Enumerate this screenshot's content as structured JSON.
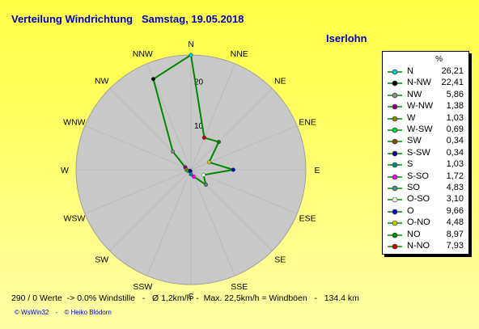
{
  "header": {
    "title": "Verteilung Windrichtung   Samstag, 19.05.2018",
    "location": "Iserlohn"
  },
  "legend": {
    "unit": "%",
    "entries": [
      {
        "label": "N",
        "value": "26,21",
        "color": "#00cccc"
      },
      {
        "label": "N-NW",
        "value": "22,41",
        "color": "#000000"
      },
      {
        "label": "NW",
        "value": "5,86",
        "color": "#888888"
      },
      {
        "label": "W-NW",
        "value": "1,38",
        "color": "#880088"
      },
      {
        "label": "W",
        "value": "1,03",
        "color": "#888800"
      },
      {
        "label": "W-SW",
        "value": "0,69",
        "color": "#00cc44"
      },
      {
        "label": "SW",
        "value": "0,34",
        "color": "#884400"
      },
      {
        "label": "S-SW",
        "value": "0,34",
        "color": "#000088"
      },
      {
        "label": "S",
        "value": "1,03",
        "color": "#008888"
      },
      {
        "label": "S-SO",
        "value": "1,72",
        "color": "#ff00ff"
      },
      {
        "label": "SO",
        "value": "4,83",
        "color": "#448888"
      },
      {
        "label": "O-SO",
        "value": "3,10",
        "color": "#ffffff"
      },
      {
        "label": "O",
        "value": "9,66",
        "color": "#0000cc"
      },
      {
        "label": "O-NO",
        "value": "4,48",
        "color": "#cccc00"
      },
      {
        "label": "NO",
        "value": "8,97",
        "color": "#008800"
      },
      {
        "label": "N-NO",
        "value": "7,93",
        "color": "#cc0000"
      }
    ]
  },
  "footer": {
    "stats": "290 / 0 Werte  -> 0.0% Windstille   -   Ø 1,2km/h  -  Max. 22,5km/h = Windböen   -   134.4 km",
    "credit_left": "© WsWin32",
    "credit_sep": "-",
    "credit_right": "© Heiko Blödorn"
  },
  "chart_data": {
    "type": "radar",
    "directions": [
      "N",
      "NNE",
      "NE",
      "ENE",
      "E",
      "ESE",
      "SE",
      "SSE",
      "S",
      "SSW",
      "SW",
      "WSW",
      "W",
      "WNW",
      "NW",
      "NNW"
    ],
    "rings": [
      "10",
      "20"
    ],
    "rmax": 26.21,
    "line_color": "#008800",
    "series": [
      {
        "values": [
          26.21,
          7.93,
          8.97,
          4.48,
          9.66,
          3.1,
          4.83,
          1.72,
          1.03,
          0.34,
          0.34,
          0.69,
          1.03,
          1.38,
          5.86,
          22.41
        ]
      }
    ]
  }
}
